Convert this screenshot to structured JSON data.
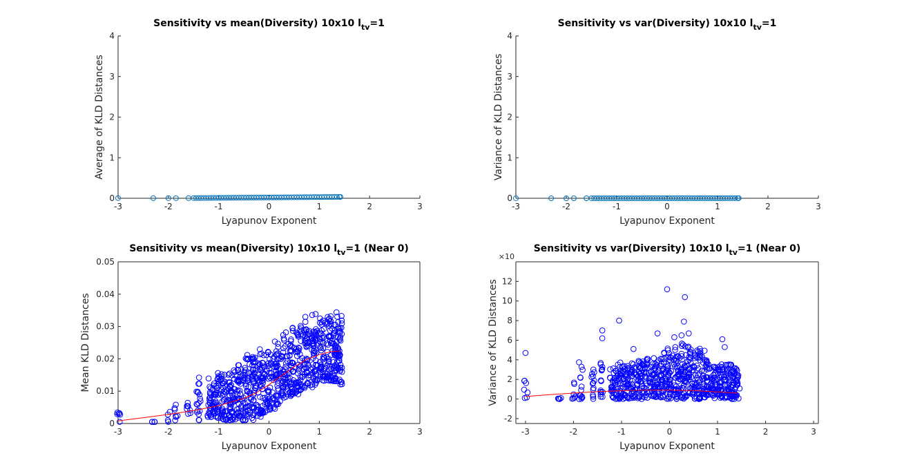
{
  "figure": {
    "colors": {
      "background": "#ffffff",
      "axis": "#262626",
      "series_marker_light": "#0072BD",
      "series_marker_dark": "#0000FF",
      "fit_line": "#FF0000"
    }
  },
  "chart_data": [
    {
      "type": "scatter",
      "title": "Sensitivity vs mean(Diversity) 10x10 l",
      "title_sub": "tv",
      "title_suffix": "=1",
      "xlabel": "Lyapunov Exponent",
      "ylabel": "Average of KLD Distances",
      "xlim": [
        -3,
        3
      ],
      "ylim": [
        0,
        4
      ],
      "xticks": [
        -3,
        -2,
        -1,
        0,
        1,
        2,
        3
      ],
      "yticks": [
        0,
        1,
        2,
        3,
        4
      ],
      "xtick_labels": [
        "-3",
        "-2",
        "-1",
        "0",
        "1",
        "2",
        "3"
      ],
      "ytick_labels": [
        "0",
        "1",
        "2",
        "3",
        "4"
      ],
      "grid": false,
      "marker": "open-circle",
      "marker_color": "#0072BD",
      "x": [
        -3,
        -2.3,
        -2,
        -1.85,
        -1.6,
        -1.5,
        -1.45,
        -1.4,
        -1.35,
        -1.3,
        -1.25,
        -1.2,
        -1.15,
        -1.1,
        -1.05,
        -1,
        -0.95,
        -0.9,
        -0.85,
        -0.8,
        -0.75,
        -0.7,
        -0.65,
        -0.6,
        -0.55,
        -0.5,
        -0.45,
        -0.4,
        -0.35,
        -0.3,
        -0.25,
        -0.2,
        -0.15,
        -0.1,
        -0.05,
        0,
        0.05,
        0.1,
        0.15,
        0.2,
        0.25,
        0.3,
        0.35,
        0.4,
        0.45,
        0.5,
        0.55,
        0.6,
        0.65,
        0.7,
        0.75,
        0.8,
        0.85,
        0.9,
        0.95,
        1,
        1.05,
        1.1,
        1.15,
        1.2,
        1.25,
        1.3,
        1.35,
        1.4,
        1.42
      ],
      "y": [
        0.005,
        0.002,
        0.003,
        0.003,
        0.004,
        0.005,
        0.005,
        0.006,
        0.006,
        0.007,
        0.007,
        0.008,
        0.008,
        0.009,
        0.009,
        0.01,
        0.01,
        0.011,
        0.011,
        0.012,
        0.012,
        0.013,
        0.013,
        0.014,
        0.014,
        0.015,
        0.015,
        0.016,
        0.016,
        0.017,
        0.017,
        0.018,
        0.018,
        0.019,
        0.019,
        0.02,
        0.02,
        0.021,
        0.021,
        0.022,
        0.022,
        0.023,
        0.023,
        0.024,
        0.024,
        0.025,
        0.025,
        0.026,
        0.026,
        0.027,
        0.027,
        0.028,
        0.028,
        0.029,
        0.029,
        0.03,
        0.03,
        0.031,
        0.031,
        0.032,
        0.032,
        0.033,
        0.033,
        0.034,
        0.034
      ]
    },
    {
      "type": "scatter",
      "title": "Sensitivity vs var(Diversity) 10x10 l",
      "title_sub": "tv",
      "title_suffix": "=1",
      "xlabel": "Lyapunov Exponent",
      "ylabel": "Variance of KLD Distances",
      "xlim": [
        -3,
        3
      ],
      "ylim": [
        0,
        4
      ],
      "xticks": [
        -3,
        -2,
        -1,
        0,
        1,
        2,
        3
      ],
      "yticks": [
        0,
        1,
        2,
        3,
        4
      ],
      "xtick_labels": [
        "-3",
        "-2",
        "-1",
        "0",
        "1",
        "2",
        "3"
      ],
      "ytick_labels": [
        "0",
        "1",
        "2",
        "3",
        "4"
      ],
      "grid": false,
      "marker": "open-circle",
      "marker_color": "#0072BD",
      "x": [
        -3,
        -2.3,
        -2,
        -1.85,
        -1.6,
        -1.5,
        -1.45,
        -1.4,
        -1.35,
        -1.3,
        -1.25,
        -1.2,
        -1.15,
        -1.1,
        -1.05,
        -1,
        -0.95,
        -0.9,
        -0.85,
        -0.8,
        -0.75,
        -0.7,
        -0.65,
        -0.6,
        -0.55,
        -0.5,
        -0.45,
        -0.4,
        -0.35,
        -0.3,
        -0.25,
        -0.2,
        -0.15,
        -0.1,
        -0.05,
        0,
        0.05,
        0.1,
        0.15,
        0.2,
        0.25,
        0.3,
        0.35,
        0.4,
        0.45,
        0.5,
        0.55,
        0.6,
        0.65,
        0.7,
        0.75,
        0.8,
        0.85,
        0.9,
        0.95,
        1,
        1.05,
        1.1,
        1.15,
        1.2,
        1.25,
        1.3,
        1.35,
        1.4,
        1.42
      ],
      "y": [
        0.0005,
        0.0001,
        0.0002,
        0.0002,
        0.0002,
        0.0003,
        0.0003,
        0.0004,
        0.0004,
        0.0005,
        0.0005,
        0.0005,
        0.0006,
        0.0006,
        0.0006,
        0.0007,
        0.0007,
        0.0008,
        0.0008,
        0.0008,
        0.0009,
        0.0009,
        0.0009,
        0.001,
        0.001,
        0.0011,
        0.0011,
        0.0011,
        0.0012,
        0.0012,
        0.0012,
        0.0013,
        0.0013,
        0.0014,
        0.0014,
        0.0015,
        0.0015,
        0.0015,
        0.0016,
        0.0016,
        0.0016,
        0.0017,
        0.0017,
        0.0018,
        0.0018,
        0.0018,
        0.0019,
        0.0019,
        0.0019,
        0.002,
        0.002,
        0.0021,
        0.0021,
        0.0021,
        0.0022,
        0.0022,
        0.0022,
        0.0023,
        0.0023,
        0.0024,
        0.0024,
        0.0024,
        0.0025,
        0.0025,
        0.0025
      ]
    },
    {
      "type": "scatter",
      "title": "Sensitivity vs mean(Diversity) 10x10 l",
      "title_sub": "tv",
      "title_suffix": "=1 (Near 0)",
      "xlabel": "Lyapunov Exponent",
      "ylabel": "Mean KLD Distances",
      "xlim": [
        -3,
        3
      ],
      "ylim": [
        0,
        0.05
      ],
      "xticks": [
        -3,
        -2,
        -1,
        0,
        1,
        2,
        3
      ],
      "yticks": [
        0,
        0.01,
        0.02,
        0.03,
        0.04,
        0.05
      ],
      "xtick_labels": [
        "-3",
        "-2",
        "-1",
        "0",
        "1",
        "2",
        "3"
      ],
      "ytick_labels": [
        "0",
        "0.01",
        "0.02",
        "0.03",
        "0.04",
        "0.05"
      ],
      "grid": false,
      "marker": "open-circle",
      "marker_color": "#0000FF",
      "x_columns": [
        -3,
        -2.3,
        -2,
        -1.85,
        -1.6,
        -1.4,
        -1.2,
        -1.05,
        -0.9,
        -0.75,
        -0.6,
        -0.45,
        -0.3,
        -0.15,
        0,
        0.15,
        0.3,
        0.45,
        0.6,
        0.75,
        0.9,
        1.05,
        1.2,
        1.32,
        1.42
      ],
      "y_column_min": [
        0.0,
        0.0005,
        0.0003,
        0.0005,
        0.001,
        0.001,
        0.002,
        0.001,
        0.001,
        0.001,
        0.001,
        0.001,
        0.002,
        0.003,
        0.004,
        0.006,
        0.008,
        0.009,
        0.01,
        0.011,
        0.012,
        0.013,
        0.013,
        0.013,
        0.012
      ],
      "y_column_max": [
        0.005,
        0.0005,
        0.004,
        0.006,
        0.008,
        0.016,
        0.014,
        0.017,
        0.017,
        0.019,
        0.019,
        0.023,
        0.022,
        0.026,
        0.024,
        0.027,
        0.029,
        0.031,
        0.032,
        0.033,
        0.034,
        0.034,
        0.034,
        0.035,
        0.034
      ],
      "fit_x": [
        -3,
        -2.5,
        -2,
        -1.5,
        -1,
        -0.5,
        -0.25,
        0,
        0.25,
        0.5,
        0.75,
        1,
        1.25,
        1.42
      ],
      "fit_y": [
        0.0008,
        0.0018,
        0.0028,
        0.004,
        0.0055,
        0.0078,
        0.0095,
        0.012,
        0.0148,
        0.0175,
        0.0198,
        0.0213,
        0.0223,
        0.0224
      ]
    },
    {
      "type": "scatter",
      "title": "Sensitivity vs var(Diversity) 10x10 l",
      "title_sub": "tv",
      "title_suffix": "=1 (Near 0)",
      "xlabel": "Lyapunov Exponent",
      "ylabel": "Variance of KLD Distances",
      "exponent_label": "×10",
      "xlim": [
        -3.2,
        3.1
      ],
      "ylim": [
        -2.5,
        14
      ],
      "xticks": [
        -3,
        -2,
        -1,
        0,
        1,
        2,
        3
      ],
      "yticks": [
        -2,
        0,
        2,
        4,
        6,
        8,
        10,
        12
      ],
      "xtick_labels": [
        "-3",
        "-2",
        "-1",
        "0",
        "1",
        "2",
        "3"
      ],
      "ytick_labels": [
        "-2",
        "0",
        "2",
        "4",
        "6",
        "8",
        "10",
        "12"
      ],
      "grid": false,
      "marker": "open-circle",
      "marker_color": "#0000FF",
      "x_columns": [
        -3,
        -2.3,
        -2,
        -1.85,
        -1.6,
        -1.4,
        -1.2,
        -1.05,
        -0.9,
        -0.75,
        -0.6,
        -0.45,
        -0.3,
        -0.15,
        0,
        0.15,
        0.3,
        0.45,
        0.6,
        0.75,
        0.9,
        1.05,
        1.2,
        1.32,
        1.42
      ],
      "y_column_min": [
        0,
        0,
        0,
        0,
        0,
        0,
        0,
        0,
        0,
        0,
        0,
        0,
        0,
        0,
        0,
        0,
        0,
        0,
        0,
        0,
        0,
        0,
        0,
        0,
        0
      ],
      "y_column_max": [
        1.9,
        0.2,
        1.9,
        3.8,
        3.5,
        4.2,
        3.2,
        3.8,
        3.6,
        3.7,
        4,
        4.2,
        4.5,
        5,
        5.2,
        5.3,
        6,
        5.2,
        5.5,
        4.5,
        4.2,
        4,
        4,
        3.5,
        2.5
      ],
      "outliers": [
        {
          "x": -3,
          "y": 4.7
        },
        {
          "x": -1.4,
          "y": 7
        },
        {
          "x": -1.4,
          "y": 6.2
        },
        {
          "x": -1.05,
          "y": 8
        },
        {
          "x": -0.75,
          "y": 5.1
        },
        {
          "x": -0.25,
          "y": 6.7
        },
        {
          "x": -0.05,
          "y": 11.2
        },
        {
          "x": 0.1,
          "y": 6.3
        },
        {
          "x": 0.32,
          "y": 10.4
        },
        {
          "x": 0.3,
          "y": 7.9
        },
        {
          "x": 0.4,
          "y": 6.7
        },
        {
          "x": 0.25,
          "y": 6.5
        },
        {
          "x": 1.1,
          "y": 6.1
        },
        {
          "x": 1.15,
          "y": 5.3
        }
      ],
      "fit_x": [
        -3,
        -2.5,
        -2,
        -1.5,
        -1,
        -0.5,
        0,
        0.5,
        1,
        1.42
      ],
      "fit_y": [
        0.25,
        0.45,
        0.6,
        0.75,
        0.85,
        0.9,
        0.9,
        0.85,
        0.72,
        0.6
      ]
    }
  ]
}
